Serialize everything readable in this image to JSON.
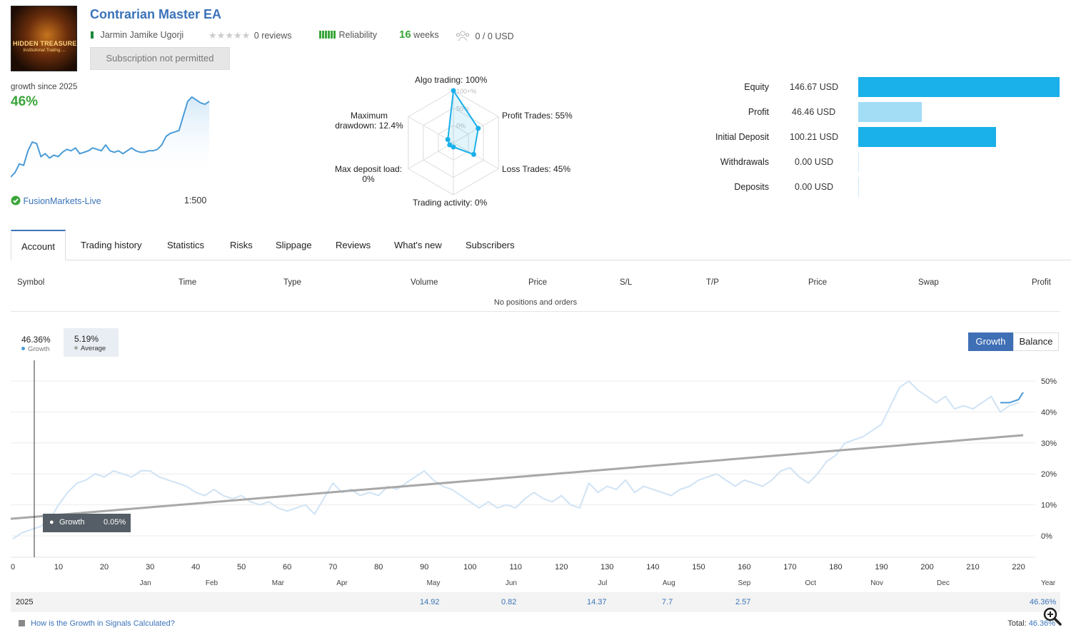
{
  "header": {
    "title": "Contrarian Master EA",
    "logo_text_1": "HIDDEN TREASURES",
    "logo_text_2": "Institutional Trading.....",
    "author": "Jarmin Jamike Ugorji",
    "reviews": "0 reviews",
    "reliability": "Reliability",
    "weeks_num": "16",
    "weeks_label": "weeks",
    "subscribers": "0 / 0 USD",
    "subscribe_button": "Subscription not permitted"
  },
  "summary": {
    "growth_since": "growth since 2025",
    "growth_value": "46%",
    "broker": "FusionMarkets-Live",
    "leverage": "1:500",
    "sparkline": [
      0,
      3,
      9,
      8,
      18,
      24,
      23,
      14,
      16,
      13,
      15,
      14,
      17,
      19,
      18,
      20,
      16,
      17,
      18,
      20,
      19,
      18,
      22,
      18,
      17,
      18,
      16,
      18,
      20,
      18,
      17,
      17,
      18,
      18,
      19,
      22,
      28,
      30,
      31,
      32,
      42,
      52,
      55,
      53,
      51,
      50,
      52
    ]
  },
  "radar": {
    "labels": {
      "algo": "Algo trading: 100%",
      "profit_trades": "Profit Trades: 55%",
      "loss_trades": "Loss Trades: 45%",
      "trading_activity": "Trading activity: 0%",
      "max_deposit_load_1": "Max deposit load:",
      "max_deposit_load_2": "0%",
      "max_drawdown_1": "Maximum",
      "max_drawdown_2": "drawdown: 12.4%"
    },
    "ring_labels": [
      "100+%",
      "50%",
      "0%"
    ],
    "values": [
      100,
      55,
      45,
      0,
      0,
      12.4
    ]
  },
  "financials": [
    {
      "label": "Equity",
      "value": "146.67 USD",
      "amount": 146.67,
      "color": "#1ab0ea"
    },
    {
      "label": "Profit",
      "value": "46.46 USD",
      "amount": 46.46,
      "color": "#a3dcf5"
    },
    {
      "label": "Initial Deposit",
      "value": "100.21 USD",
      "amount": 100.21,
      "color": "#1ab0ea"
    },
    {
      "label": "Withdrawals",
      "value": "0.00 USD",
      "amount": 0,
      "color": "#1ab0ea"
    },
    {
      "label": "Deposits",
      "value": "0.00 USD",
      "amount": 0,
      "color": "#1ab0ea"
    }
  ],
  "tabs": [
    "Account",
    "Trading history",
    "Statistics",
    "Risks",
    "Slippage",
    "Reviews",
    "What's new",
    "Subscribers"
  ],
  "table": {
    "headers": [
      "Symbol",
      "Time",
      "Type",
      "Volume",
      "Price",
      "S/L",
      "T/P",
      "Price",
      "Swap",
      "Profit"
    ],
    "empty_text": "No positions and orders"
  },
  "chart_legend": {
    "growth_value": "46.36%",
    "growth_label": "Growth",
    "average_value": "5.19%",
    "average_label": "Average"
  },
  "chart_buttons": {
    "growth": "Growth",
    "balance": "Balance"
  },
  "tooltip": {
    "label": "Growth",
    "value": "0.05%"
  },
  "chart_data": {
    "type": "line",
    "title": "",
    "xlabel": "",
    "ylabel": "",
    "xlim": [
      0,
      224
    ],
    "ylim": [
      -7,
      55
    ],
    "x_ticks": [
      0,
      10,
      20,
      30,
      40,
      50,
      60,
      70,
      80,
      90,
      100,
      110,
      120,
      130,
      140,
      150,
      160,
      170,
      180,
      190,
      200,
      210,
      220
    ],
    "y_ticks": [
      "0%",
      "10%",
      "20%",
      "30%",
      "40%",
      "50%"
    ],
    "y_tick_values": [
      0,
      10,
      20,
      30,
      40,
      50
    ],
    "months": [
      "Jan",
      "Feb",
      "Mar",
      "Apr",
      "May",
      "Jun",
      "Jul",
      "Aug",
      "Sep",
      "Oct",
      "Nov",
      "Dec"
    ],
    "month_positions": [
      29,
      43.5,
      58,
      72,
      92,
      109,
      129,
      143.5,
      160,
      174.5,
      189,
      203.5
    ],
    "year_label": "Year",
    "series": [
      {
        "name": "Growth (historical, faded)",
        "x": [
          0,
          2,
          4,
          6,
          8,
          10,
          12,
          14,
          16,
          18,
          20,
          22,
          24,
          26,
          28,
          30,
          32,
          34,
          36,
          38,
          40,
          42,
          44,
          46,
          48,
          50,
          52,
          54,
          56,
          58,
          60,
          62,
          64,
          66,
          68,
          70,
          72,
          74,
          76,
          78,
          80,
          82,
          84,
          86,
          88,
          90,
          92,
          94,
          96,
          98,
          100,
          102,
          104,
          106,
          108,
          110,
          112,
          114,
          116,
          118,
          120,
          122,
          124,
          126,
          128,
          130,
          132,
          134,
          136,
          138,
          140,
          142,
          144,
          146,
          148,
          150,
          152,
          154,
          156,
          158,
          160,
          162,
          164,
          166,
          168,
          170,
          172,
          174,
          176,
          178,
          180,
          182,
          184,
          186,
          188,
          190,
          192,
          194,
          196,
          198,
          200,
          202,
          204,
          206,
          208,
          210,
          212,
          214,
          216,
          218,
          220
        ],
        "values": [
          -1,
          1,
          2,
          3,
          5,
          10,
          14,
          17,
          18,
          20,
          19,
          21,
          20,
          19,
          21,
          21,
          19,
          18,
          17,
          16,
          14,
          13,
          15,
          13,
          12,
          13,
          11,
          10,
          11,
          9,
          8,
          9,
          10,
          7,
          12,
          17,
          14,
          15,
          13,
          14,
          13,
          16,
          15,
          17,
          19,
          21,
          18,
          16,
          15,
          13,
          11,
          9,
          11,
          9,
          10,
          9,
          12,
          14,
          12,
          11,
          13,
          10,
          9,
          17,
          14,
          16,
          15,
          18,
          14,
          16,
          15,
          14,
          13,
          15,
          16,
          18,
          19,
          20,
          18,
          16,
          18,
          17,
          16,
          18,
          21,
          22,
          19,
          17,
          20,
          24,
          26,
          30,
          31,
          32,
          34,
          36,
          42,
          48,
          50,
          47,
          45,
          43,
          45,
          41,
          42,
          41,
          43,
          45,
          40,
          42,
          43
        ]
      },
      {
        "name": "Growth (current)",
        "x": [
          216,
          218,
          220,
          221
        ],
        "values": [
          43,
          43,
          44,
          46.36
        ]
      },
      {
        "name": "Trend",
        "x": [
          0,
          221
        ],
        "values": [
          5.5,
          32.5
        ]
      }
    ],
    "year_row": {
      "year": "2025",
      "monthly": [
        {
          "month": "May",
          "value": "14.92"
        },
        {
          "month": "Jun",
          "value": "0.82"
        },
        {
          "month": "Jul",
          "value": "14.37"
        },
        {
          "month": "Aug",
          "value": "7.7"
        },
        {
          "month": "Sep",
          "value": "2.57"
        }
      ],
      "year_total": "46.36%"
    }
  },
  "footer": {
    "link": "How is the Growth in Signals Calculated?",
    "total_label": "Total:",
    "total_value": "46.36%"
  },
  "colors": {
    "accent": "#3b73b9",
    "growth_green": "#3aa53a",
    "line_blue": "#4a9bd8",
    "trend_gray": "#a8a8a8"
  }
}
